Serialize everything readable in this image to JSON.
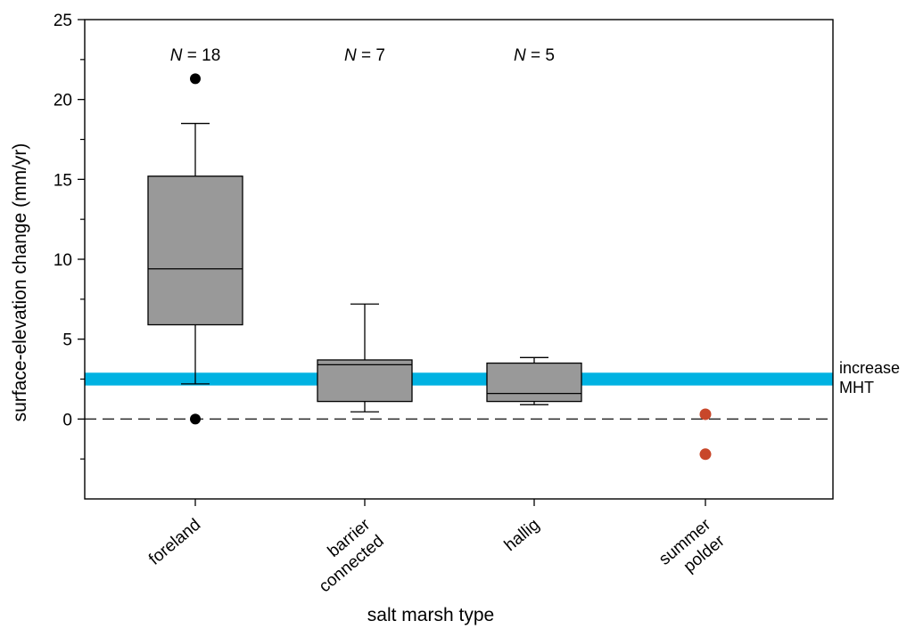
{
  "chart_data": {
    "type": "box",
    "xlabel": "salt marsh type",
    "ylabel": "surface-elevation change  (mm/yr)",
    "ylim": [
      -5,
      25
    ],
    "yticks": [
      0,
      5,
      10,
      15,
      20,
      25
    ],
    "yminor_ticks": [
      -2.5,
      2.5,
      7.5,
      12.5,
      17.5,
      22.5
    ],
    "grid": false,
    "reference_line": {
      "y": 0,
      "style": "dashed"
    },
    "band": {
      "y_low": 2.1,
      "y_high": 2.9,
      "color": "#00b2e2",
      "label_lines": [
        "increase",
        "MHT"
      ]
    },
    "categories": [
      {
        "label_lines": [
          "foreland"
        ],
        "n_label": "18",
        "box": {
          "whisker_low": 2.2,
          "q1": 5.9,
          "median": 9.4,
          "q3": 15.2,
          "whisker_high": 18.5
        },
        "outliers": [
          21.3,
          0.0
        ]
      },
      {
        "label_lines": [
          "barrier",
          "connected"
        ],
        "n_label": "7",
        "box": {
          "whisker_low": 0.45,
          "q1": 1.1,
          "median": 3.4,
          "q3": 3.7,
          "whisker_high": 7.2
        },
        "outliers": []
      },
      {
        "label_lines": [
          "hallig"
        ],
        "n_label": "5",
        "box": {
          "whisker_low": 0.9,
          "q1": 1.1,
          "median": 1.6,
          "q3": 3.5,
          "whisker_high": 3.85
        },
        "outliers": []
      },
      {
        "label_lines": [
          "summer",
          "polder"
        ],
        "n_label": "",
        "box": null,
        "points": [
          0.3,
          -2.2
        ]
      }
    ],
    "colors": {
      "box_fill": "#999999",
      "outlier": "#000000",
      "point": "#c8472a"
    }
  }
}
